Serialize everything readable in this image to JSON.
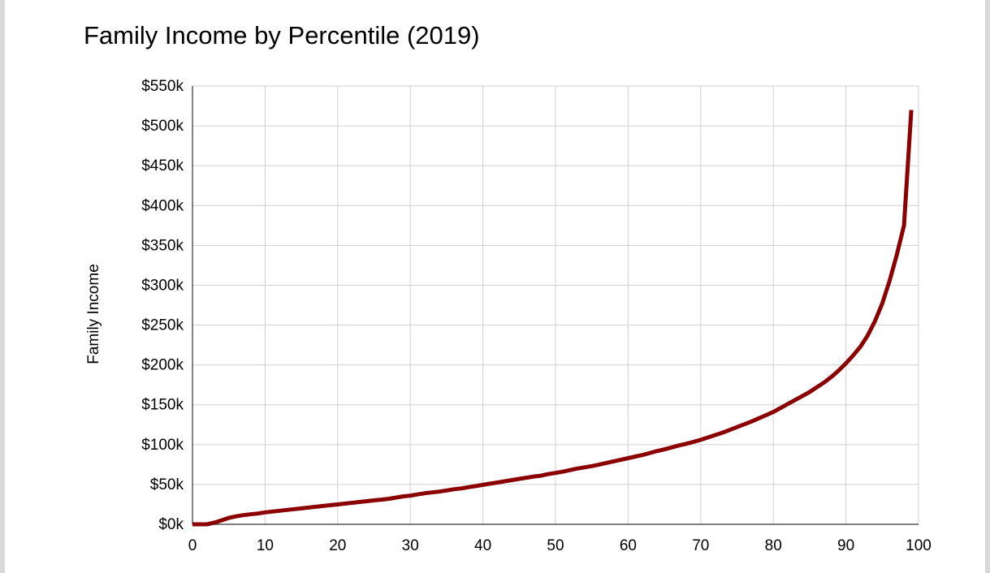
{
  "chart_data": {
    "type": "line",
    "title": "Family Income by Percentile (2019)",
    "xlabel": "",
    "ylabel": "Family Income",
    "xlim": [
      0,
      100
    ],
    "ylim": [
      0,
      550
    ],
    "y_unit": "thousands of dollars",
    "grid": true,
    "legend": "none",
    "x_ticks": [
      0,
      10,
      20,
      30,
      40,
      50,
      60,
      70,
      80,
      90,
      100
    ],
    "x_tick_labels": [
      "0",
      "10",
      "20",
      "30",
      "40",
      "50",
      "60",
      "70",
      "80",
      "90",
      "100"
    ],
    "y_ticks": [
      0,
      50,
      100,
      150,
      200,
      250,
      300,
      350,
      400,
      450,
      500,
      550
    ],
    "y_tick_labels": [
      "$0k",
      "$50k",
      "$100k",
      "$150k",
      "$200k",
      "$250k",
      "$300k",
      "$350k",
      "$400k",
      "$450k",
      "$500k",
      "$550k"
    ],
    "series": [
      {
        "color": "#8b0000",
        "x": [
          0,
          1,
          2,
          3,
          4,
          5,
          6,
          7,
          8,
          9,
          10,
          11,
          12,
          13,
          14,
          15,
          16,
          17,
          18,
          19,
          20,
          21,
          22,
          23,
          24,
          25,
          26,
          27,
          28,
          29,
          30,
          31,
          32,
          33,
          34,
          35,
          36,
          37,
          38,
          39,
          40,
          41,
          42,
          43,
          44,
          45,
          46,
          47,
          48,
          49,
          50,
          51,
          52,
          53,
          54,
          55,
          56,
          57,
          58,
          59,
          60,
          61,
          62,
          63,
          64,
          65,
          66,
          67,
          68,
          69,
          70,
          71,
          72,
          73,
          74,
          75,
          76,
          77,
          78,
          79,
          80,
          81,
          82,
          83,
          84,
          85,
          86,
          87,
          88,
          89,
          90,
          91,
          92,
          93,
          94,
          95,
          96,
          97,
          98,
          99
        ],
        "values": [
          0,
          0,
          0,
          2,
          5,
          8,
          10,
          11.5,
          12.5,
          13.5,
          15,
          16,
          17,
          18,
          19,
          20,
          21,
          22,
          23,
          24,
          25,
          26,
          27,
          28,
          29,
          30,
          31,
          32,
          33.5,
          35,
          36,
          37.5,
          39,
          40,
          41,
          42.5,
          44,
          45,
          46.5,
          48,
          49.5,
          51,
          52.5,
          54,
          55.5,
          57,
          58.5,
          60,
          61,
          63,
          64.5,
          66,
          68,
          70,
          71.5,
          73,
          75,
          77,
          79,
          81,
          83,
          85,
          87,
          89.5,
          92,
          94,
          96.5,
          99,
          101,
          103.5,
          106,
          109,
          112,
          115,
          118.5,
          122,
          125.5,
          129,
          133,
          137,
          141,
          146,
          151,
          156,
          161,
          166,
          172,
          178,
          185,
          193,
          202,
          212,
          223,
          237,
          255,
          277,
          305,
          338,
          375,
          520
        ]
      }
    ]
  }
}
